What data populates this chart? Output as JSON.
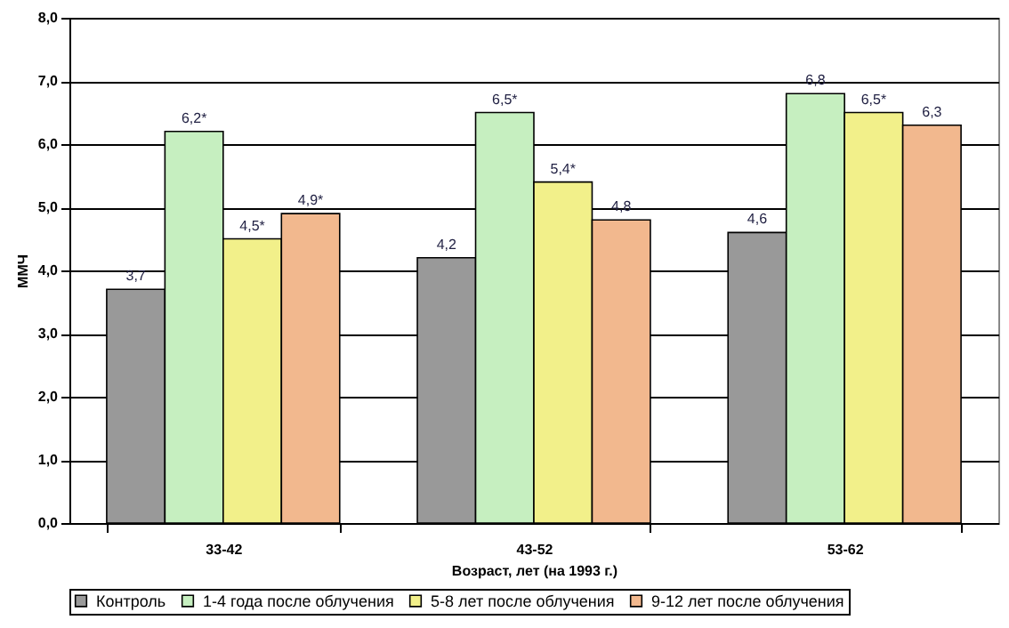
{
  "chart_data": {
    "type": "bar",
    "xlabel": "Возраст, лет (на 1993 г.)",
    "ylabel": "ММЧ",
    "categories": [
      "33-42",
      "43-52",
      "53-62"
    ],
    "series": [
      {
        "name": "Контроль",
        "color": "#999999",
        "values": [
          3.7,
          4.2,
          4.6
        ],
        "value_labels": [
          "3,7",
          "4,2",
          "4,6"
        ]
      },
      {
        "name": "1-4 года после облучения",
        "color": "#c6efc0",
        "values": [
          6.2,
          6.5,
          6.8
        ],
        "value_labels": [
          "6,2*",
          "6,5*",
          "6,8"
        ]
      },
      {
        "name": "5-8 лет после облучения",
        "color": "#f2f08a",
        "values": [
          4.5,
          5.4,
          6.5
        ],
        "value_labels": [
          "4,5*",
          "5,4*",
          "6,5*"
        ]
      },
      {
        "name": "9-12 лет после облучения",
        "color": "#f2b88e",
        "values": [
          4.9,
          4.8,
          6.3
        ],
        "value_labels": [
          "4,9*",
          "4,8",
          "6,3"
        ]
      }
    ],
    "ylim": [
      0,
      8
    ],
    "yticks": [
      {
        "value": 0,
        "label": "0,0"
      },
      {
        "value": 1,
        "label": "1,0"
      },
      {
        "value": 2,
        "label": "2,0"
      },
      {
        "value": 3,
        "label": "3,0"
      },
      {
        "value": 4,
        "label": "4,0"
      },
      {
        "value": 5,
        "label": "5,0"
      },
      {
        "value": 6,
        "label": "6,0"
      },
      {
        "value": 7,
        "label": "7,0"
      },
      {
        "value": 8,
        "label": "8,0"
      }
    ],
    "grid": "y",
    "legend": "bottom"
  }
}
